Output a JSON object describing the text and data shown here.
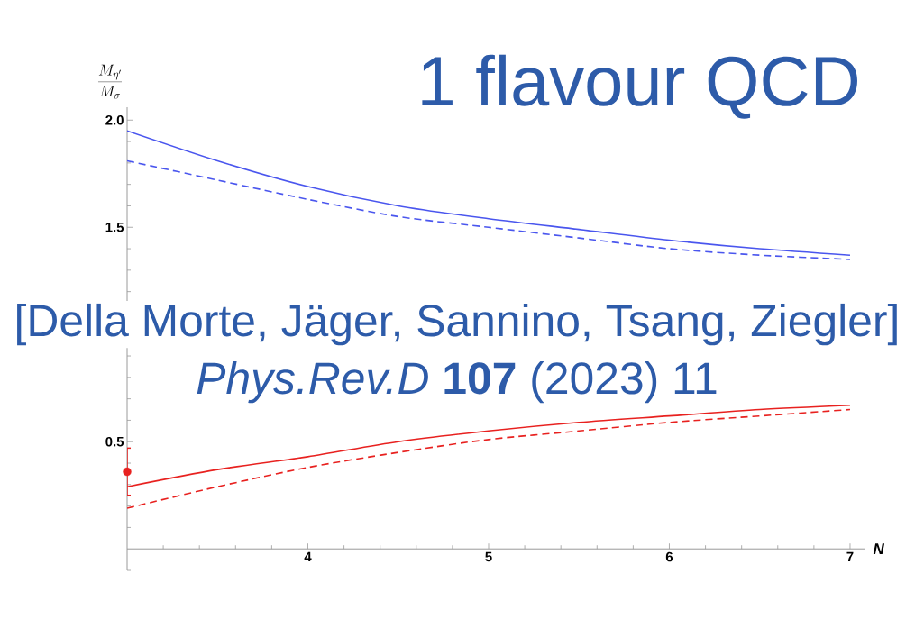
{
  "chart_data": {
    "type": "line",
    "title": "1 flavour QCD",
    "xlabel": "N",
    "ylabel": "\\frac{M_{\\eta'}}{M_{\\sigma}}",
    "annotations": [
      "[Della Morte, Jäger, Sannino, Tsang, Ziegler]",
      "*Phys.Rev.D* **107** (2023) 11"
    ],
    "xlim": [
      3,
      7.08
    ],
    "ylim": [
      -0.1,
      2.06
    ],
    "xticks": [
      {
        "value": 3.2,
        "label": null
      },
      {
        "value": 3.4,
        "label": null
      },
      {
        "value": 3.6,
        "label": null
      },
      {
        "value": 3.8,
        "label": null
      },
      4,
      {
        "value": 4.2,
        "label": null
      },
      {
        "value": 4.4,
        "label": null
      },
      {
        "value": 4.6,
        "label": null
      },
      {
        "value": 4.8,
        "label": null
      },
      5,
      {
        "value": 5.2,
        "label": null
      },
      {
        "value": 5.4,
        "label": null
      },
      {
        "value": 5.6,
        "label": null
      },
      {
        "value": 5.8,
        "label": null
      },
      6,
      {
        "value": 6.2,
        "label": null
      },
      {
        "value": 6.4,
        "label": null
      },
      {
        "value": 6.6,
        "label": null
      },
      {
        "value": 6.8,
        "label": null
      },
      7
    ],
    "yticks": [
      {
        "value": -0.1,
        "label": null
      },
      {
        "value": 0.1,
        "label": null
      },
      {
        "value": 0.2,
        "label": null
      },
      {
        "value": 0.3,
        "label": null
      },
      {
        "value": 0.4,
        "label": null
      },
      0.5,
      {
        "value": 0.6,
        "label": null
      },
      {
        "value": 0.7,
        "label": null
      },
      {
        "value": 0.8,
        "label": null
      },
      {
        "value": 0.9,
        "label": null
      },
      {
        "value": 1.2,
        "label": null
      },
      {
        "value": 1.3,
        "label": null
      },
      {
        "value": 1.4,
        "label": null
      },
      1.5,
      {
        "value": 1.6,
        "label": null
      },
      {
        "value": 1.7,
        "label": null
      },
      {
        "value": 1.8,
        "label": null
      },
      {
        "value": 1.9,
        "label": null
      },
      {
        "value": 2,
        "label": "2.0"
      }
    ],
    "x": [
      3,
      3.5,
      4,
      4.5,
      5,
      5.5,
      6,
      6.5,
      7
    ],
    "series": [
      {
        "color": "#4a56ee",
        "line_style": "solid",
        "values": [
          1.95,
          1.81,
          1.69,
          1.6,
          1.54,
          1.49,
          1.44,
          1.4,
          1.37
        ]
      },
      {
        "color": "#4a56ee",
        "line_style": "dashed",
        "values": [
          1.81,
          1.72,
          1.63,
          1.55,
          1.5,
          1.45,
          1.4,
          1.37,
          1.35
        ]
      },
      {
        "color": "#e8211f",
        "line_style": "solid",
        "values": [
          0.29,
          0.37,
          0.43,
          0.5,
          0.55,
          0.59,
          0.62,
          0.65,
          0.67
        ]
      },
      {
        "color": "#e8211f",
        "line_style": "dashed",
        "values": [
          0.19,
          0.29,
          0.38,
          0.45,
          0.51,
          0.55,
          0.59,
          0.62,
          0.65
        ]
      },
      {
        "type": "scatter",
        "color": "#e8211f",
        "marker": "circle",
        "x": [
          3
        ],
        "values": [
          0.36
        ],
        "errors": [
          0.11
        ]
      }
    ]
  }
}
